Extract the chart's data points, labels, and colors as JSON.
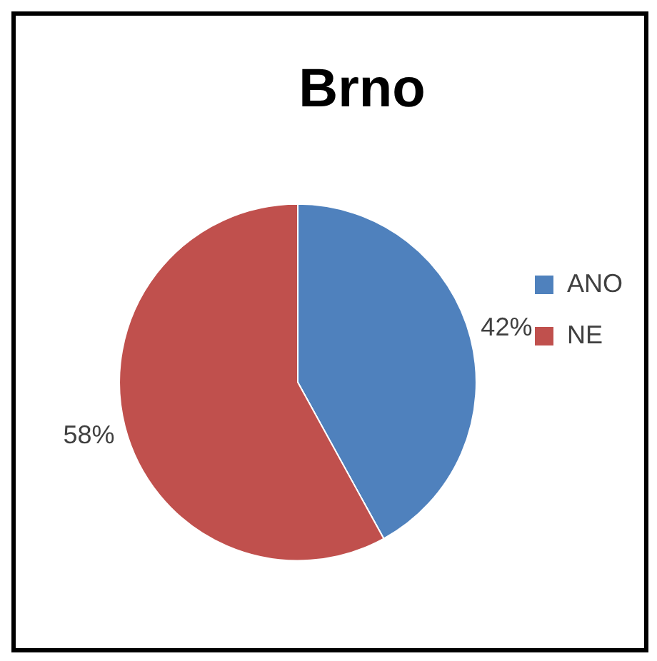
{
  "chart_data": {
    "type": "pie",
    "title": "Brno",
    "categories": [
      "ANO",
      "NE"
    ],
    "values": [
      42,
      58
    ],
    "colors": [
      "#4f81bd",
      "#c0504d"
    ],
    "value_labels": [
      "42%",
      "58%"
    ],
    "legend": "right"
  }
}
